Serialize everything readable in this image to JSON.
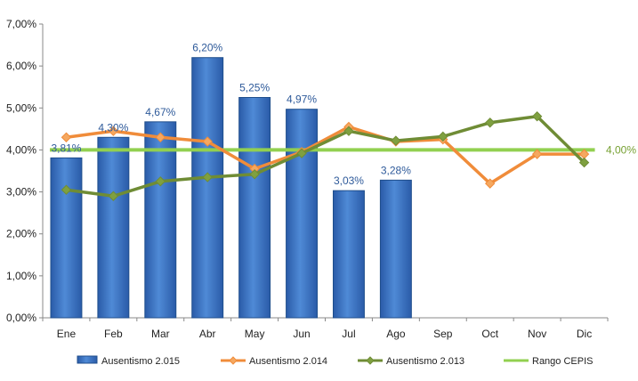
{
  "chart_data": {
    "type": "bar",
    "categories": [
      "Ene",
      "Feb",
      "Mar",
      "Abr",
      "May",
      "Jun",
      "Jul",
      "Ago",
      "Sep",
      "Oct",
      "Nov",
      "Dic"
    ],
    "ylim": [
      0,
      7
    ],
    "y_ticks": [
      "0,00%",
      "1,00%",
      "2,00%",
      "3,00%",
      "4,00%",
      "5,00%",
      "6,00%",
      "7,00%"
    ],
    "y_tick_values": [
      0,
      1,
      2,
      3,
      4,
      5,
      6,
      7
    ],
    "grid": false,
    "legend_position": "bottom",
    "series": [
      {
        "name": "Ausentismo 2.015",
        "kind": "bar",
        "color": "#3a72c0",
        "values": [
          3.81,
          4.3,
          4.67,
          6.2,
          5.25,
          4.97,
          3.03,
          3.28,
          null,
          null,
          null,
          null
        ],
        "labels": [
          "3,81%",
          "4,30%",
          "4,67%",
          "6,20%",
          "5,25%",
          "4,97%",
          "3,03%",
          "3,28%",
          "",
          "",
          "",
          ""
        ]
      },
      {
        "name": "Ausentismo 2.014",
        "kind": "line",
        "color": "#f08c3a",
        "marker_color": "#f5a860",
        "values": [
          4.3,
          4.45,
          4.3,
          4.2,
          3.55,
          3.95,
          4.55,
          4.2,
          4.25,
          3.2,
          3.9,
          3.9
        ]
      },
      {
        "name": "Ausentismo 2.013",
        "kind": "line",
        "color": "#6f8c35",
        "marker_color": "#7fa040",
        "values": [
          3.05,
          2.9,
          3.25,
          3.35,
          3.42,
          3.92,
          4.45,
          4.22,
          4.32,
          4.65,
          4.8,
          3.7
        ]
      },
      {
        "name": "Rango CEPIS",
        "kind": "reference",
        "color": "#92d050",
        "value": 4.0,
        "label": "4,00%"
      }
    ]
  }
}
